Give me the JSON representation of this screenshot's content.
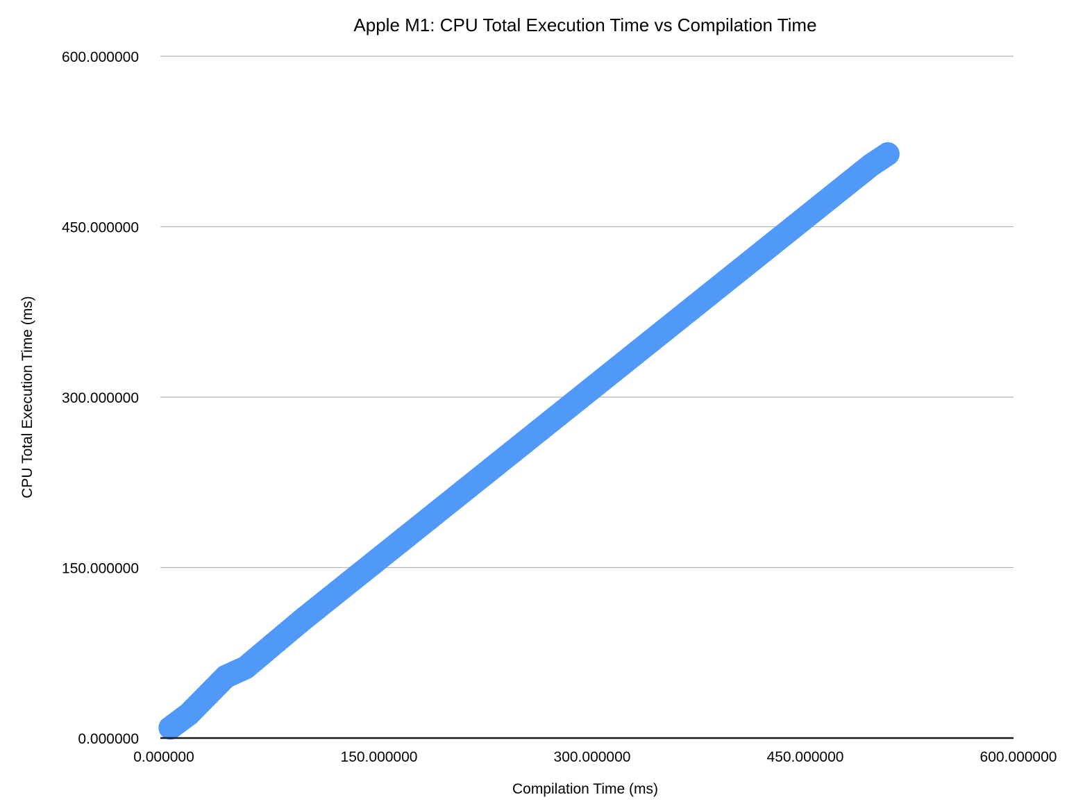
{
  "chart_data": {
    "type": "scatter",
    "title": "Apple M1: CPU Total Execution Time vs Compilation Time",
    "xlabel": "Compilation Time (ms)",
    "ylabel": "CPU Total Execution Time (ms)",
    "xlim": [
      0,
      600
    ],
    "ylim": [
      0,
      600
    ],
    "x_ticks": [
      "0.000000",
      "150.000000",
      "300.000000",
      "450.000000",
      "600.000000"
    ],
    "y_ticks": [
      "0.000000",
      "150.000000",
      "300.000000",
      "450.000000",
      "600.000000"
    ],
    "grid": "horizontal",
    "legend": "none",
    "series": [
      {
        "name": "CPU Total Execution Time",
        "color": "#5199f8",
        "marker_size": "large",
        "x": [
          7,
          20,
          46,
          60,
          100,
          150,
          200,
          250,
          300,
          350,
          400,
          450,
          500,
          512
        ],
        "y": [
          9,
          21,
          54,
          62,
          104,
          154,
          204,
          254,
          304,
          354,
          404,
          454,
          504,
          514
        ]
      }
    ]
  },
  "colors": {
    "series": "#5199f8",
    "grid": "#b5b5b5",
    "axis": "#1a1a1a",
    "text": "#000000"
  }
}
